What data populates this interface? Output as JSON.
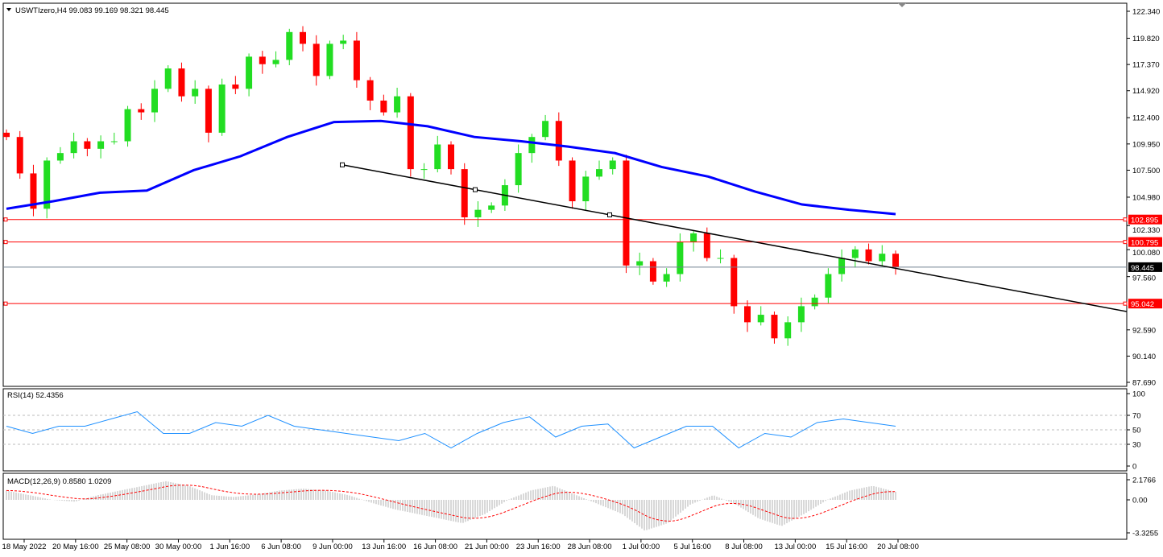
{
  "header": {
    "symbol_line": "USWTIzero,H4  99.083 99.169 98.321 98.445"
  },
  "colors": {
    "bull": "#22dd22",
    "bear": "#ff0000",
    "ma": "#0000ff",
    "trendline": "#000000",
    "level_red": "#ff0000",
    "level_gray": "#708090",
    "rsi": "#1e90ff",
    "macd_hist": "#b0b0b0",
    "macd_signal": "#ff0000"
  },
  "chart_data": [
    {
      "type": "candlestick",
      "title": "USWTIzero,H4",
      "ohlc_last": {
        "open": 99.083,
        "high": 99.169,
        "low": 98.321,
        "close": 98.445
      },
      "ylim": [
        87.69,
        122.34
      ],
      "y_ticks": [
        "122.340",
        "119.820",
        "117.370",
        "114.920",
        "112.400",
        "109.950",
        "107.500",
        "104.980",
        "102.330",
        "100.080",
        "97.560",
        "92.590",
        "90.140",
        "87.690"
      ],
      "closes": [
        110.6,
        107.2,
        103.9,
        108.4,
        109.1,
        110.2,
        109.5,
        110.2,
        110.2,
        113.2,
        112.9,
        115.1,
        117.0,
        114.4,
        115.1,
        111.0,
        115.5,
        115.1,
        118.1,
        117.4,
        117.8,
        120.4,
        119.3,
        116.3,
        119.3,
        119.6,
        115.9,
        114.0,
        112.9,
        114.4,
        107.6,
        107.6,
        109.9,
        107.6,
        103.1,
        103.8,
        104.2,
        106.1,
        109.1,
        110.6,
        112.1,
        108.4,
        104.6,
        106.9,
        107.6,
        108.4,
        98.6,
        99.0,
        97.1,
        97.8,
        100.8,
        101.6,
        99.3,
        99.3,
        94.8,
        93.3,
        94.0,
        91.8,
        93.3,
        94.8,
        95.6,
        97.8,
        99.3,
        100.1,
        99.0,
        99.7,
        98.445
      ],
      "moving_average": [
        103.9,
        104.6,
        105.4,
        105.6,
        107.5,
        108.8,
        110.6,
        112.0,
        112.1,
        111.6,
        110.6,
        110.2,
        109.7,
        109.1,
        107.8,
        106.9,
        105.5,
        104.3,
        103.8,
        103.4
      ],
      "trendline": {
        "start_price": 108.0,
        "end_price": 94.3
      },
      "levels": [
        {
          "label": "102.895",
          "value": 102.895,
          "color": "#ff0000"
        },
        {
          "label": "100.795",
          "value": 100.795,
          "color": "#ff0000"
        },
        {
          "label": "98.445",
          "value": 98.445,
          "color": "#000000"
        },
        {
          "label": "95.042",
          "value": 95.042,
          "color": "#ff0000"
        }
      ],
      "x_ticks": [
        "18 May 2022",
        "20 May 16:00",
        "25 May 08:00",
        "30 May 00:00",
        "1 Jun 16:00",
        "6 Jun 08:00",
        "9 Jun 00:00",
        "13 Jun 16:00",
        "16 Jun 08:00",
        "21 Jun 00:00",
        "23 Jun 16:00",
        "28 Jun 08:00",
        "1 Jul 00:00",
        "5 Jul 16:00",
        "8 Jul 08:00",
        "13 Jul 00:00",
        "15 Jul 16:00",
        "20 Jul 08:00"
      ]
    },
    {
      "type": "line",
      "title": "RSI(14) 52.4356",
      "ylim": [
        0,
        100
      ],
      "y_ticks": [
        "100",
        "70",
        "50",
        "30",
        "0"
      ],
      "levels": [
        70,
        50,
        30
      ],
      "values": [
        55,
        45,
        55,
        55,
        65,
        75,
        45,
        45,
        60,
        55,
        70,
        55,
        50,
        45,
        40,
        35,
        45,
        25,
        45,
        60,
        68,
        40,
        55,
        58,
        25,
        40,
        55,
        55,
        25,
        45,
        40,
        60,
        65,
        60,
        55
      ]
    },
    {
      "type": "bar",
      "title": "MACD(12,26,9) 0.8580 1.0209",
      "ylim": [
        -3.3255,
        2.1766
      ],
      "y_ticks": [
        "2.1766",
        "0.00",
        "-3.3255"
      ],
      "values": [
        1.0,
        0.5,
        0.0,
        -0.2,
        0.5,
        1.0,
        1.5,
        2.0,
        1.5,
        0.5,
        0.3,
        0.6,
        1.0,
        1.2,
        1.0,
        0.5,
        -0.3,
        -1.0,
        -1.5,
        -2.0,
        -2.5,
        -1.5,
        0.0,
        1.0,
        1.5,
        0.5,
        -0.5,
        -1.5,
        -3.3,
        -2.5,
        -0.5,
        0.5,
        -0.5,
        -2.0,
        -2.8,
        -1.5,
        0.0,
        1.0,
        1.5,
        0.858
      ],
      "signal_last": 1.0209
    }
  ]
}
